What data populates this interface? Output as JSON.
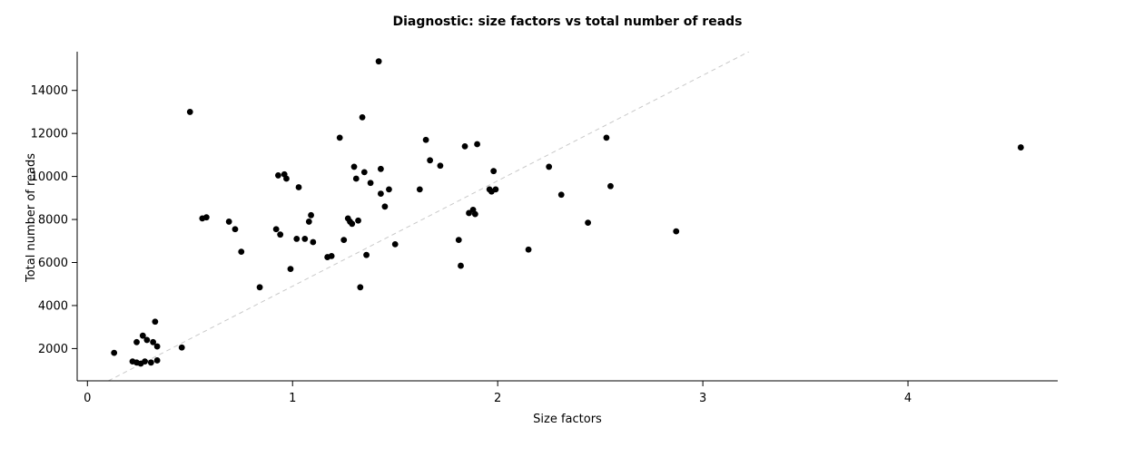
{
  "chart_data": {
    "type": "scatter",
    "title": "Diagnostic: size factors vs total number of reads",
    "xlabel": "Size factors",
    "ylabel": "Total number of reads",
    "xlim": [
      -0.05,
      4.73
    ],
    "ylim": [
      500,
      15800
    ],
    "x_ticks": [
      0,
      1,
      2,
      3,
      4
    ],
    "y_ticks": [
      2000,
      4000,
      6000,
      8000,
      10000,
      12000,
      14000
    ],
    "grid": false,
    "legend": "none",
    "point_color": "#000000",
    "point_radius": 3.4,
    "reference_line": {
      "type": "dashed",
      "color": "#c9c9c9",
      "slope": 4900,
      "intercept": 0
    },
    "points": [
      [
        0.13,
        1800
      ],
      [
        0.22,
        1400
      ],
      [
        0.24,
        1350
      ],
      [
        0.26,
        1300
      ],
      [
        0.28,
        1400
      ],
      [
        0.24,
        2300
      ],
      [
        0.27,
        2600
      ],
      [
        0.29,
        2400
      ],
      [
        0.33,
        3250
      ],
      [
        0.32,
        2300
      ],
      [
        0.34,
        2100
      ],
      [
        0.34,
        1450
      ],
      [
        0.31,
        1350
      ],
      [
        0.46,
        2050
      ],
      [
        0.5,
        13000
      ],
      [
        0.56,
        8050
      ],
      [
        0.58,
        8100
      ],
      [
        0.69,
        7900
      ],
      [
        0.72,
        7550
      ],
      [
        0.75,
        6500
      ],
      [
        0.84,
        4850
      ],
      [
        0.92,
        7550
      ],
      [
        0.94,
        7300
      ],
      [
        0.93,
        10050
      ],
      [
        0.96,
        10100
      ],
      [
        0.97,
        9900
      ],
      [
        0.99,
        5700
      ],
      [
        1.03,
        9500
      ],
      [
        1.02,
        7100
      ],
      [
        1.06,
        7100
      ],
      [
        1.08,
        7900
      ],
      [
        1.09,
        8200
      ],
      [
        1.1,
        6950
      ],
      [
        1.17,
        6250
      ],
      [
        1.19,
        6300
      ],
      [
        1.23,
        11800
      ],
      [
        1.25,
        7050
      ],
      [
        1.27,
        8050
      ],
      [
        1.28,
        7900
      ],
      [
        1.29,
        7800
      ],
      [
        1.3,
        10450
      ],
      [
        1.31,
        9900
      ],
      [
        1.32,
        7950
      ],
      [
        1.33,
        4850
      ],
      [
        1.34,
        12750
      ],
      [
        1.35,
        10200
      ],
      [
        1.36,
        6350
      ],
      [
        1.38,
        9700
      ],
      [
        1.42,
        15350
      ],
      [
        1.43,
        9200
      ],
      [
        1.43,
        10350
      ],
      [
        1.45,
        8600
      ],
      [
        1.47,
        9400
      ],
      [
        1.5,
        6850
      ],
      [
        1.62,
        9400
      ],
      [
        1.65,
        11700
      ],
      [
        1.67,
        10750
      ],
      [
        1.72,
        10500
      ],
      [
        1.81,
        7050
      ],
      [
        1.82,
        5850
      ],
      [
        1.84,
        11400
      ],
      [
        1.86,
        8300
      ],
      [
        1.88,
        8450
      ],
      [
        1.89,
        8250
      ],
      [
        1.9,
        11500
      ],
      [
        1.96,
        9400
      ],
      [
        1.97,
        9300
      ],
      [
        1.98,
        10250
      ],
      [
        1.99,
        9400
      ],
      [
        2.15,
        6600
      ],
      [
        2.25,
        10450
      ],
      [
        2.31,
        9150
      ],
      [
        2.44,
        7850
      ],
      [
        2.53,
        11800
      ],
      [
        2.55,
        9550
      ],
      [
        2.87,
        7450
      ],
      [
        4.55,
        11350
      ]
    ]
  }
}
